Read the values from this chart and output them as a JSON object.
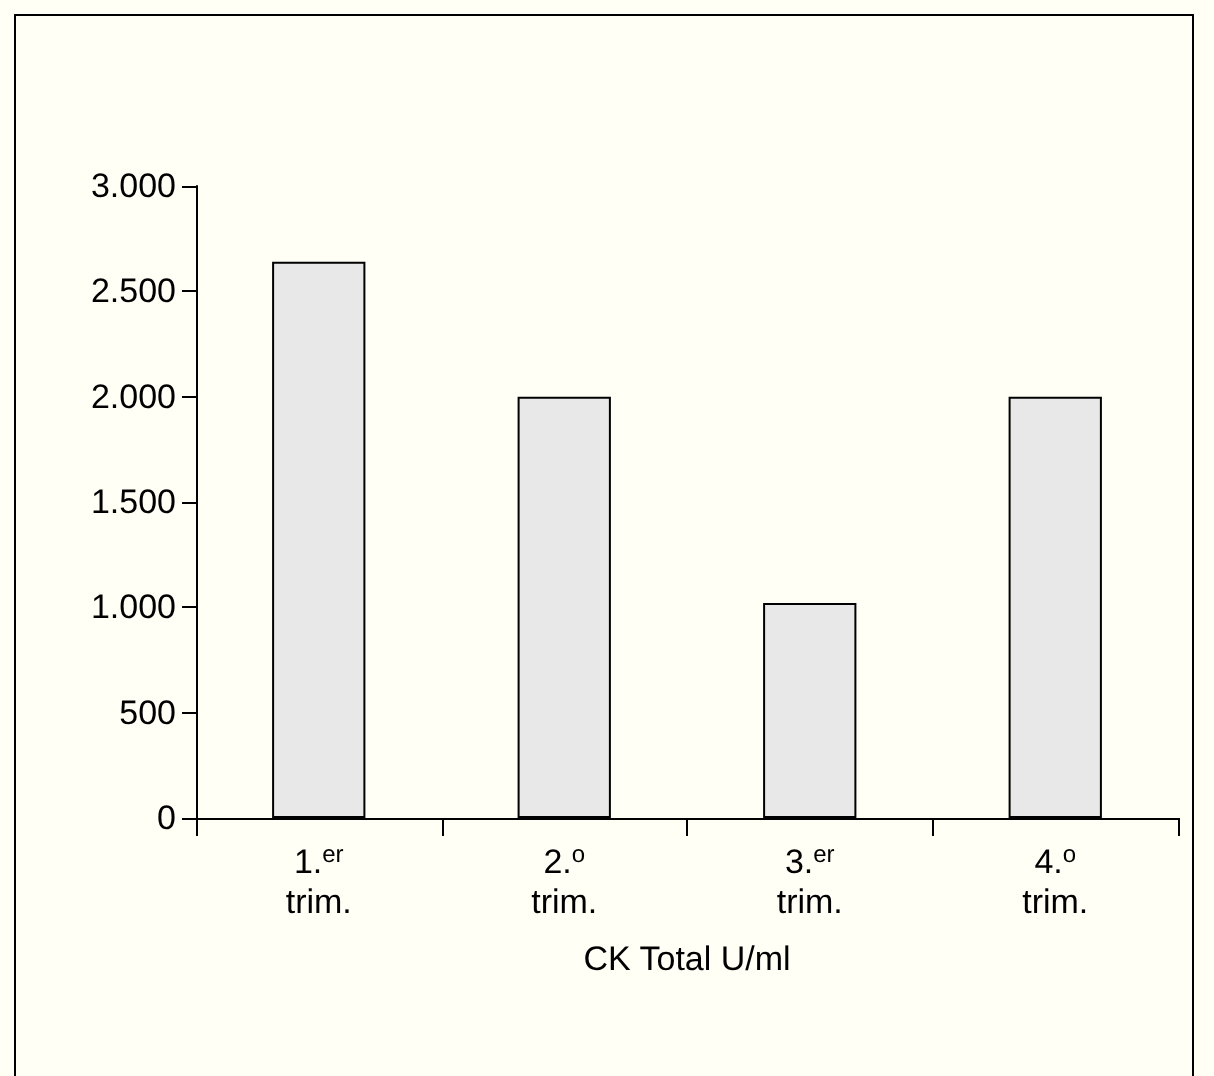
{
  "chart_data": {
    "type": "bar",
    "xlabel": "CK Total U/ml",
    "categories": [
      "1.$^{er}$\ntrim.",
      "2.$^{o}$\ntrim.",
      "3.$^{er}$\ntrim.",
      "4.$^{o}$\ntrim."
    ],
    "values": [
      2640,
      2000,
      1020,
      2000
    ],
    "color": "#e8e8e8",
    "ylim": [
      0,
      3000
    ],
    "yticks": [
      {
        "value": 0,
        "label": "0"
      },
      {
        "value": 500,
        "label": "500"
      },
      {
        "value": 1000,
        "label": "1.000"
      },
      {
        "value": 1500,
        "label": "1.500"
      },
      {
        "value": 2000,
        "label": "2.000"
      },
      {
        "value": 2500,
        "label": "2.500"
      },
      {
        "value": 3000,
        "label": "3.000"
      }
    ],
    "grid": false
  }
}
